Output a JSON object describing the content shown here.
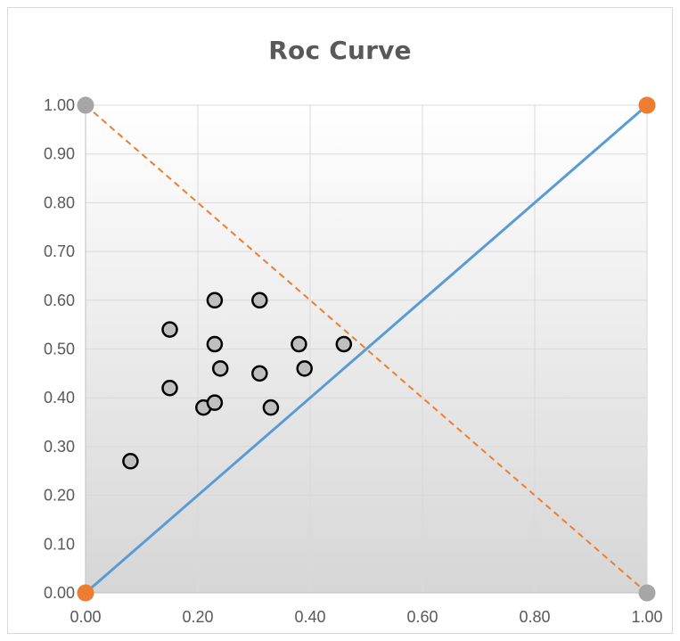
{
  "chart_data": {
    "type": "scatter",
    "title": "Roc Curve",
    "xlabel": "",
    "ylabel": "",
    "xlim": [
      0,
      1
    ],
    "ylim": [
      0,
      1
    ],
    "grid": true,
    "legend": "none",
    "x_ticks": [
      "0.00",
      "0.20",
      "0.40",
      "0.60",
      "0.80",
      "1.00"
    ],
    "y_ticks": [
      "0.00",
      "0.10",
      "0.20",
      "0.30",
      "0.40",
      "0.50",
      "0.60",
      "0.70",
      "0.80",
      "0.90",
      "1.00"
    ],
    "series": [
      {
        "type": "scatter",
        "marker": "circle-open-grey",
        "color": "#bfbfbf",
        "points": [
          {
            "x": 0.08,
            "y": 0.27
          },
          {
            "x": 0.15,
            "y": 0.54
          },
          {
            "x": 0.15,
            "y": 0.42
          },
          {
            "x": 0.21,
            "y": 0.38
          },
          {
            "x": 0.23,
            "y": 0.39
          },
          {
            "x": 0.23,
            "y": 0.51
          },
          {
            "x": 0.23,
            "y": 0.6
          },
          {
            "x": 0.24,
            "y": 0.46
          },
          {
            "x": 0.31,
            "y": 0.45
          },
          {
            "x": 0.31,
            "y": 0.6
          },
          {
            "x": 0.33,
            "y": 0.38
          },
          {
            "x": 0.38,
            "y": 0.51
          },
          {
            "x": 0.39,
            "y": 0.46
          },
          {
            "x": 0.46,
            "y": 0.51
          }
        ]
      },
      {
        "type": "line",
        "style": "solid",
        "color": "#5b9bd5",
        "marker_color": "#ed7d31",
        "points": [
          {
            "x": 0,
            "y": 0
          },
          {
            "x": 1,
            "y": 1
          }
        ]
      },
      {
        "type": "line",
        "style": "dashed",
        "color": "#ed7d31",
        "marker_color": "#a6a6a6",
        "points": [
          {
            "x": 0,
            "y": 1
          },
          {
            "x": 1,
            "y": 0
          }
        ]
      }
    ]
  }
}
